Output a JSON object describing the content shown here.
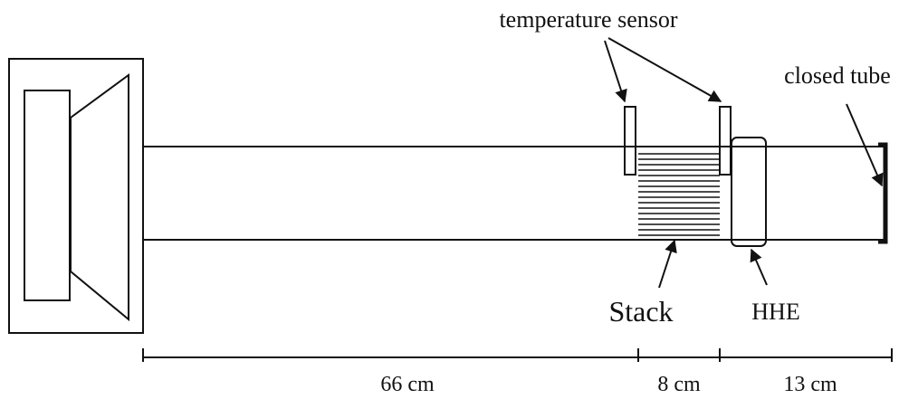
{
  "labels": {
    "temperature_sensor": "temperature sensor",
    "closed_tube": "closed tube",
    "stack": "Stack",
    "hhe": "HHE"
  },
  "dimensions": [
    "66 cm",
    "8 cm",
    "13 cm"
  ]
}
